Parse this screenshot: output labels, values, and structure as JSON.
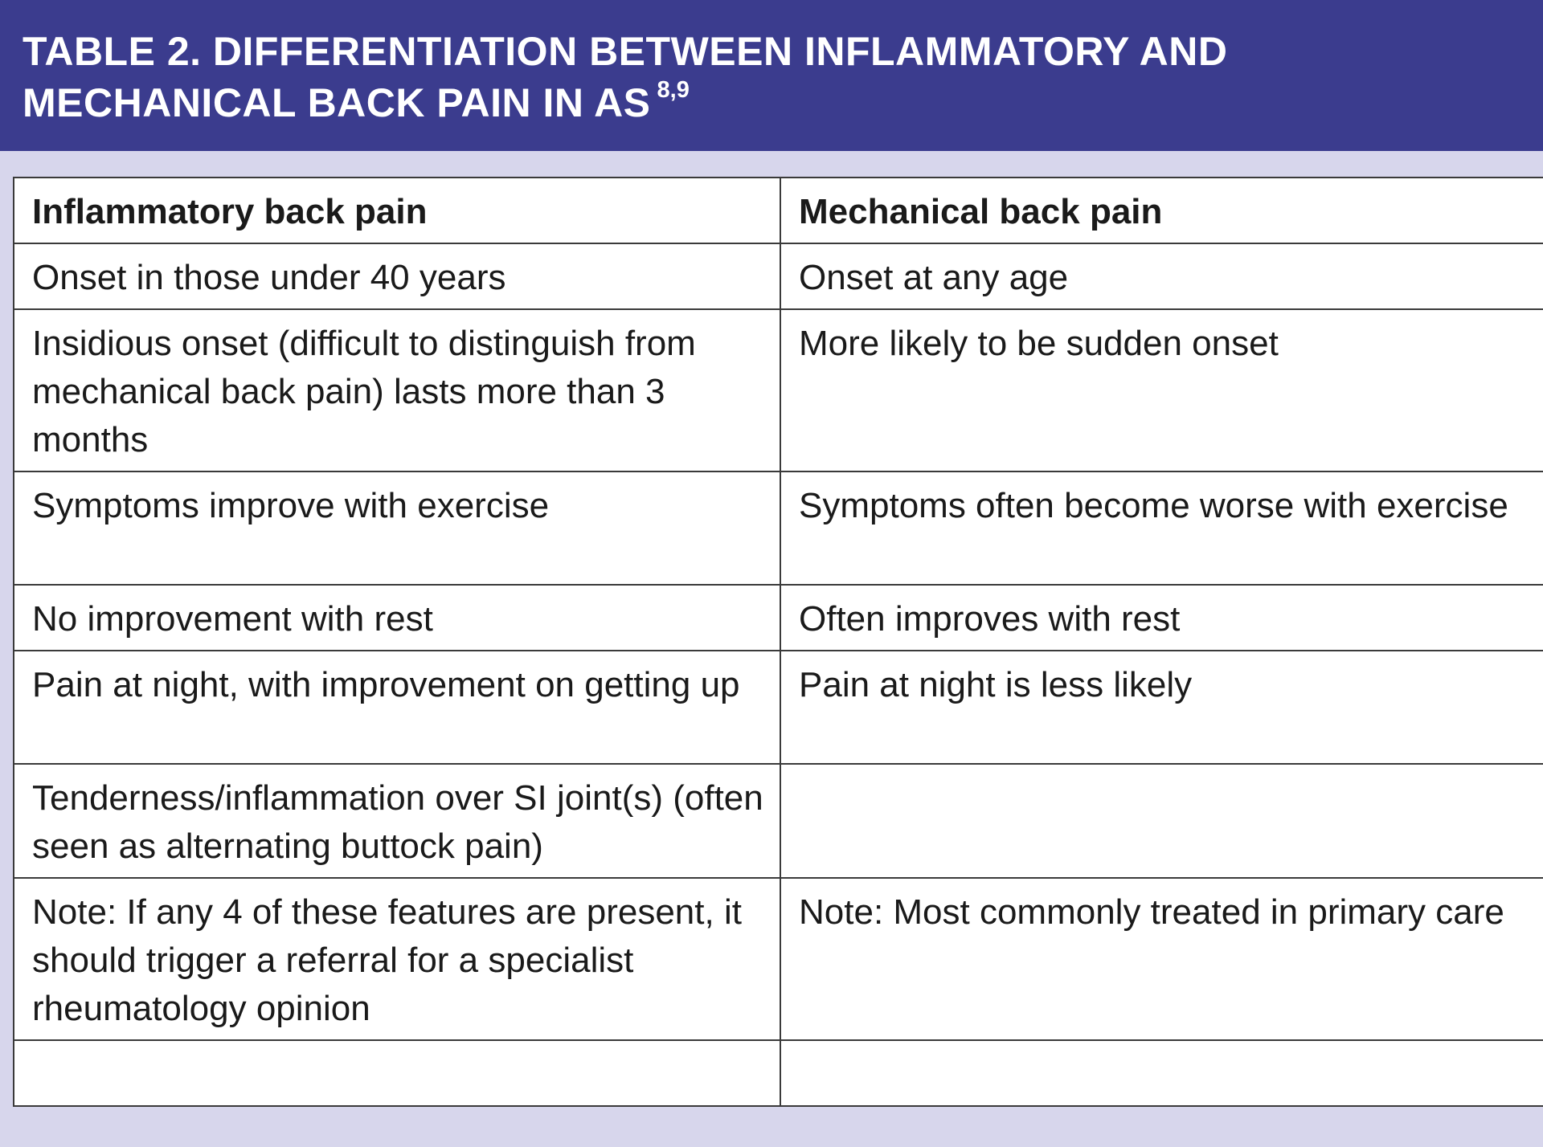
{
  "header": {
    "title_line1": "TABLE 2. DIFFERENTIATION BETWEEN INFLAMMATORY AND",
    "title_line2": "MECHANICAL BACK PAIN IN AS",
    "superscript": "8,9"
  },
  "table": {
    "columns": [
      "Inflammatory back pain",
      "Mechanical back pain"
    ],
    "rows": [
      [
        "Onset in those under 40 years",
        "Onset at any age"
      ],
      [
        "Insidious onset (difficult to distinguish from mechanical back pain) lasts more than 3 months",
        "More likely to be sudden onset"
      ],
      [
        "Symptoms improve with exercise",
        "Symptoms often become worse with exercise"
      ],
      [
        "No improvement with rest",
        "Often improves with rest"
      ],
      [
        "Pain at night, with improvement on getting up",
        "Pain at night is less likely"
      ],
      [
        "Tenderness/inflammation over SI joint(s) (often seen as alternating buttock pain)",
        ""
      ],
      [
        "Note: If any 4 of these features are present, it should trigger a referral for a specialist rheumatology opinion",
        "Note: Most commonly treated in primary care"
      ],
      [
        "",
        ""
      ]
    ]
  }
}
